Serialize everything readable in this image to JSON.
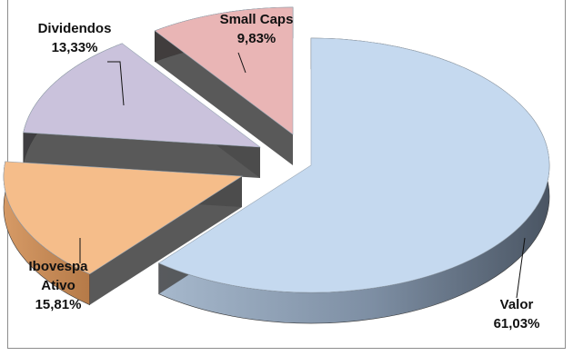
{
  "chart_data": {
    "type": "pie",
    "style": "3d-exploded",
    "title": "",
    "slices": [
      {
        "label_lines": [
          "Valor"
        ],
        "value": 61.03,
        "value_text": "61,03%",
        "color": "#c5d9ef"
      },
      {
        "label_lines": [
          "Ibovespa",
          "Ativo"
        ],
        "value": 15.81,
        "value_text": "15,81%",
        "color": "#f5bd8a"
      },
      {
        "label_lines": [
          "Dividendos"
        ],
        "value": 13.33,
        "value_text": "13,33%",
        "color": "#cac2dc"
      },
      {
        "label_lines": [
          "Small Caps"
        ],
        "value": 9.83,
        "value_text": "9,83%",
        "color": "#e9b5b5"
      }
    ]
  }
}
